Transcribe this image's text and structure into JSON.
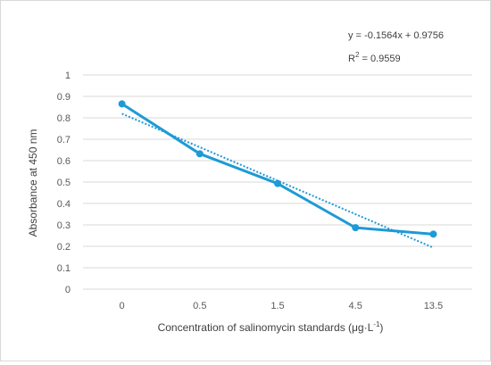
{
  "chart_data": {
    "type": "line",
    "title": "",
    "xlabel": "Concentration of salinomycin standards (μg·L",
    "xlabel_sup": "-1",
    "xlabel_tail": ")",
    "ylabel": "Absorbance at 450 nm",
    "categories": [
      "0",
      "0.5",
      "1.5",
      "4.5",
      "13.5"
    ],
    "series": [
      {
        "values": [
          0.865,
          0.632,
          0.493,
          0.287,
          0.257
        ],
        "color": "#1e9ad6",
        "marker": "circle"
      }
    ],
    "trendline": {
      "type": "linear",
      "style": "dotted",
      "color": "#1e9ad6",
      "slope": -0.1564,
      "intercept": 0.9756,
      "equation": "y = -0.1564x + 0.9756",
      "r2_label": "R",
      "r2_sup": "2",
      "r2_value": " = 0.9559"
    },
    "ylim": [
      0,
      1
    ],
    "yticks": [
      "0",
      "0.1",
      "0.2",
      "0.3",
      "0.4",
      "0.5",
      "0.6",
      "0.7",
      "0.8",
      "0.9",
      "1"
    ],
    "grid": true,
    "legend": "none"
  }
}
